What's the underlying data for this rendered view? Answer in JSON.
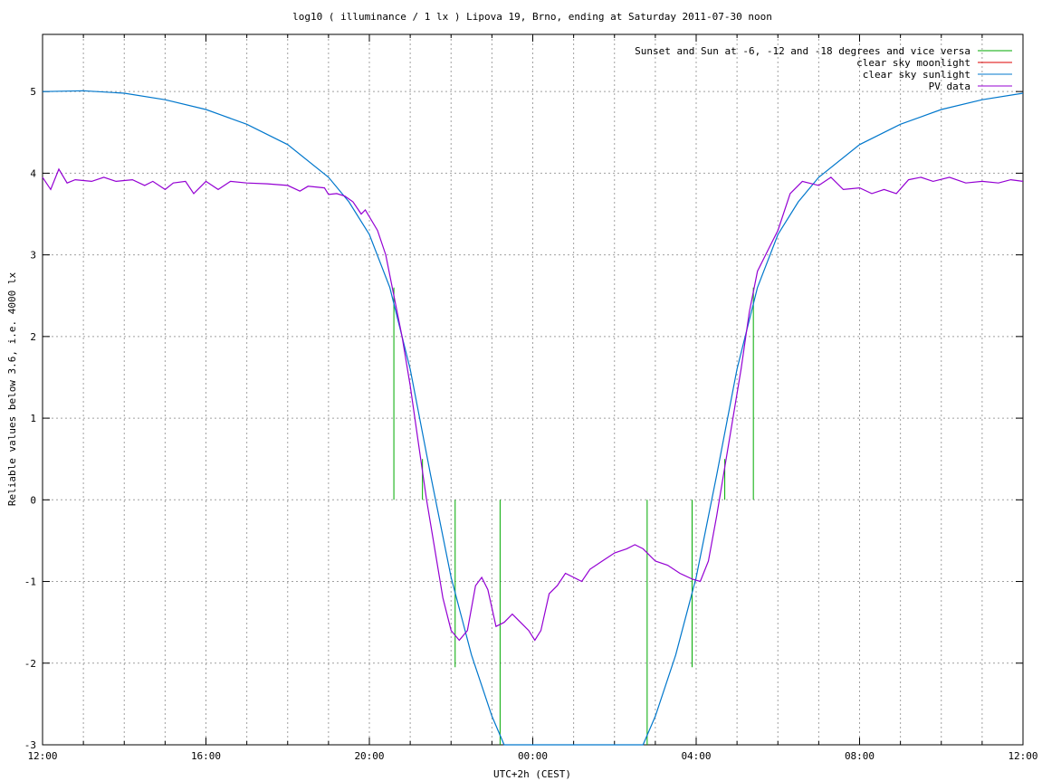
{
  "chart_data": {
    "type": "line",
    "title": "log10 ( illuminance / 1 lx ) Lipova 19, Brno, ending at Saturday 2011-07-30 noon",
    "xlabel": "UTC+2h (CEST)",
    "ylabel": "Reliable values below 3.6, i.e. 4000 lx",
    "xlim": [
      0,
      24
    ],
    "ylim": [
      -3,
      5.7
    ],
    "grid": true,
    "legend_position": "top-right",
    "x_ticks": [
      {
        "value": 0,
        "label": "12:00"
      },
      {
        "value": 4,
        "label": "16:00"
      },
      {
        "value": 8,
        "label": "20:00"
      },
      {
        "value": 12,
        "label": "00:00"
      },
      {
        "value": 16,
        "label": "04:00"
      },
      {
        "value": 20,
        "label": "08:00"
      },
      {
        "value": 24,
        "label": "12:00"
      }
    ],
    "x_minor_step": 1,
    "y_ticks": [
      {
        "value": -3,
        "label": "-3"
      },
      {
        "value": -2,
        "label": "-2"
      },
      {
        "value": -1,
        "label": "-1"
      },
      {
        "value": 0,
        "label": "0"
      },
      {
        "value": 1,
        "label": "1"
      },
      {
        "value": 2,
        "label": "2"
      },
      {
        "value": 3,
        "label": "3"
      },
      {
        "value": 4,
        "label": "4"
      },
      {
        "value": 5,
        "label": "5"
      }
    ],
    "series": [
      {
        "name": "Sunset and Sun at -6, -12 and -18 degrees and vice versa",
        "color": "#00aa00",
        "kind": "vlines",
        "lines": [
          {
            "x": 8.6,
            "y0": 0,
            "y1": 2.6
          },
          {
            "x": 9.3,
            "y0": 0,
            "y1": 0.5
          },
          {
            "x": 10.1,
            "y0": -2.05,
            "y1": 0
          },
          {
            "x": 11.2,
            "y0": -3,
            "y1": 0
          },
          {
            "x": 14.8,
            "y0": -3,
            "y1": 0
          },
          {
            "x": 15.9,
            "y0": -2.05,
            "y1": 0
          },
          {
            "x": 16.7,
            "y0": 0,
            "y1": 0.5
          },
          {
            "x": 17.4,
            "y0": 0,
            "y1": 2.6
          }
        ]
      },
      {
        "name": "clear sky moonlight",
        "color": "#dd0000",
        "kind": "line",
        "points": []
      },
      {
        "name": "clear sky sunlight",
        "color": "#0077cc",
        "kind": "line",
        "points": [
          [
            0,
            5.0
          ],
          [
            1,
            5.01
          ],
          [
            2,
            4.98
          ],
          [
            3,
            4.9
          ],
          [
            4,
            4.78
          ],
          [
            5,
            4.6
          ],
          [
            6,
            4.35
          ],
          [
            7,
            3.95
          ],
          [
            7.5,
            3.65
          ],
          [
            8,
            3.25
          ],
          [
            8.5,
            2.6
          ],
          [
            9,
            1.6
          ],
          [
            9.5,
            0.3
          ],
          [
            10,
            -0.95
          ],
          [
            10.5,
            -1.9
          ],
          [
            11,
            -2.65
          ],
          [
            11.3,
            -3.0
          ],
          [
            14.7,
            -3.0
          ],
          [
            15,
            -2.65
          ],
          [
            15.5,
            -1.9
          ],
          [
            16,
            -0.95
          ],
          [
            16.5,
            0.3
          ],
          [
            17,
            1.6
          ],
          [
            17.5,
            2.6
          ],
          [
            18,
            3.25
          ],
          [
            18.5,
            3.65
          ],
          [
            19,
            3.95
          ],
          [
            20,
            4.35
          ],
          [
            21,
            4.6
          ],
          [
            22,
            4.78
          ],
          [
            23,
            4.9
          ],
          [
            24,
            4.98
          ]
        ]
      },
      {
        "name": "PV data",
        "color": "#9400d3",
        "kind": "line",
        "points": [
          [
            0,
            3.95
          ],
          [
            0.2,
            3.8
          ],
          [
            0.4,
            4.05
          ],
          [
            0.6,
            3.88
          ],
          [
            0.8,
            3.92
          ],
          [
            1.2,
            3.9
          ],
          [
            1.5,
            3.95
          ],
          [
            1.8,
            3.9
          ],
          [
            2.2,
            3.92
          ],
          [
            2.5,
            3.85
          ],
          [
            2.7,
            3.9
          ],
          [
            3,
            3.8
          ],
          [
            3.2,
            3.88
          ],
          [
            3.5,
            3.9
          ],
          [
            3.7,
            3.75
          ],
          [
            4,
            3.9
          ],
          [
            4.3,
            3.8
          ],
          [
            4.6,
            3.9
          ],
          [
            5,
            3.88
          ],
          [
            5.5,
            3.87
          ],
          [
            6,
            3.85
          ],
          [
            6.3,
            3.78
          ],
          [
            6.5,
            3.84
          ],
          [
            6.9,
            3.82
          ],
          [
            7,
            3.74
          ],
          [
            7.2,
            3.75
          ],
          [
            7.4,
            3.72
          ],
          [
            7.6,
            3.65
          ],
          [
            7.8,
            3.5
          ],
          [
            7.9,
            3.55
          ],
          [
            8.2,
            3.3
          ],
          [
            8.4,
            3.0
          ],
          [
            8.6,
            2.5
          ],
          [
            8.8,
            2.0
          ],
          [
            9,
            1.4
          ],
          [
            9.2,
            0.7
          ],
          [
            9.4,
            0.0
          ],
          [
            9.6,
            -0.6
          ],
          [
            9.8,
            -1.2
          ],
          [
            10,
            -1.6
          ],
          [
            10.2,
            -1.72
          ],
          [
            10.4,
            -1.6
          ],
          [
            10.6,
            -1.05
          ],
          [
            10.75,
            -0.95
          ],
          [
            10.9,
            -1.1
          ],
          [
            11.1,
            -1.55
          ],
          [
            11.3,
            -1.5
          ],
          [
            11.5,
            -1.4
          ],
          [
            11.7,
            -1.5
          ],
          [
            11.9,
            -1.6
          ],
          [
            12.05,
            -1.72
          ],
          [
            12.2,
            -1.6
          ],
          [
            12.4,
            -1.15
          ],
          [
            12.6,
            -1.05
          ],
          [
            12.8,
            -0.9
          ],
          [
            13,
            -0.95
          ],
          [
            13.2,
            -1.0
          ],
          [
            13.4,
            -0.85
          ],
          [
            13.7,
            -0.75
          ],
          [
            14,
            -0.65
          ],
          [
            14.3,
            -0.6
          ],
          [
            14.5,
            -0.55
          ],
          [
            14.7,
            -0.6
          ],
          [
            15,
            -0.75
          ],
          [
            15.3,
            -0.8
          ],
          [
            15.6,
            -0.9
          ],
          [
            15.9,
            -0.97
          ],
          [
            16.1,
            -1.0
          ],
          [
            16.3,
            -0.75
          ],
          [
            16.5,
            -0.2
          ],
          [
            16.7,
            0.4
          ],
          [
            16.9,
            1.0
          ],
          [
            17.1,
            1.6
          ],
          [
            17.3,
            2.3
          ],
          [
            17.5,
            2.8
          ],
          [
            17.8,
            3.1
          ],
          [
            18,
            3.3
          ],
          [
            18.3,
            3.75
          ],
          [
            18.6,
            3.9
          ],
          [
            19,
            3.85
          ],
          [
            19.3,
            3.95
          ],
          [
            19.6,
            3.8
          ],
          [
            20,
            3.82
          ],
          [
            20.3,
            3.75
          ],
          [
            20.6,
            3.8
          ],
          [
            20.9,
            3.75
          ],
          [
            21.2,
            3.92
          ],
          [
            21.5,
            3.95
          ],
          [
            21.8,
            3.9
          ],
          [
            22.2,
            3.95
          ],
          [
            22.6,
            3.88
          ],
          [
            23,
            3.9
          ],
          [
            23.4,
            3.88
          ],
          [
            23.7,
            3.92
          ],
          [
            24,
            3.9
          ]
        ]
      }
    ]
  }
}
